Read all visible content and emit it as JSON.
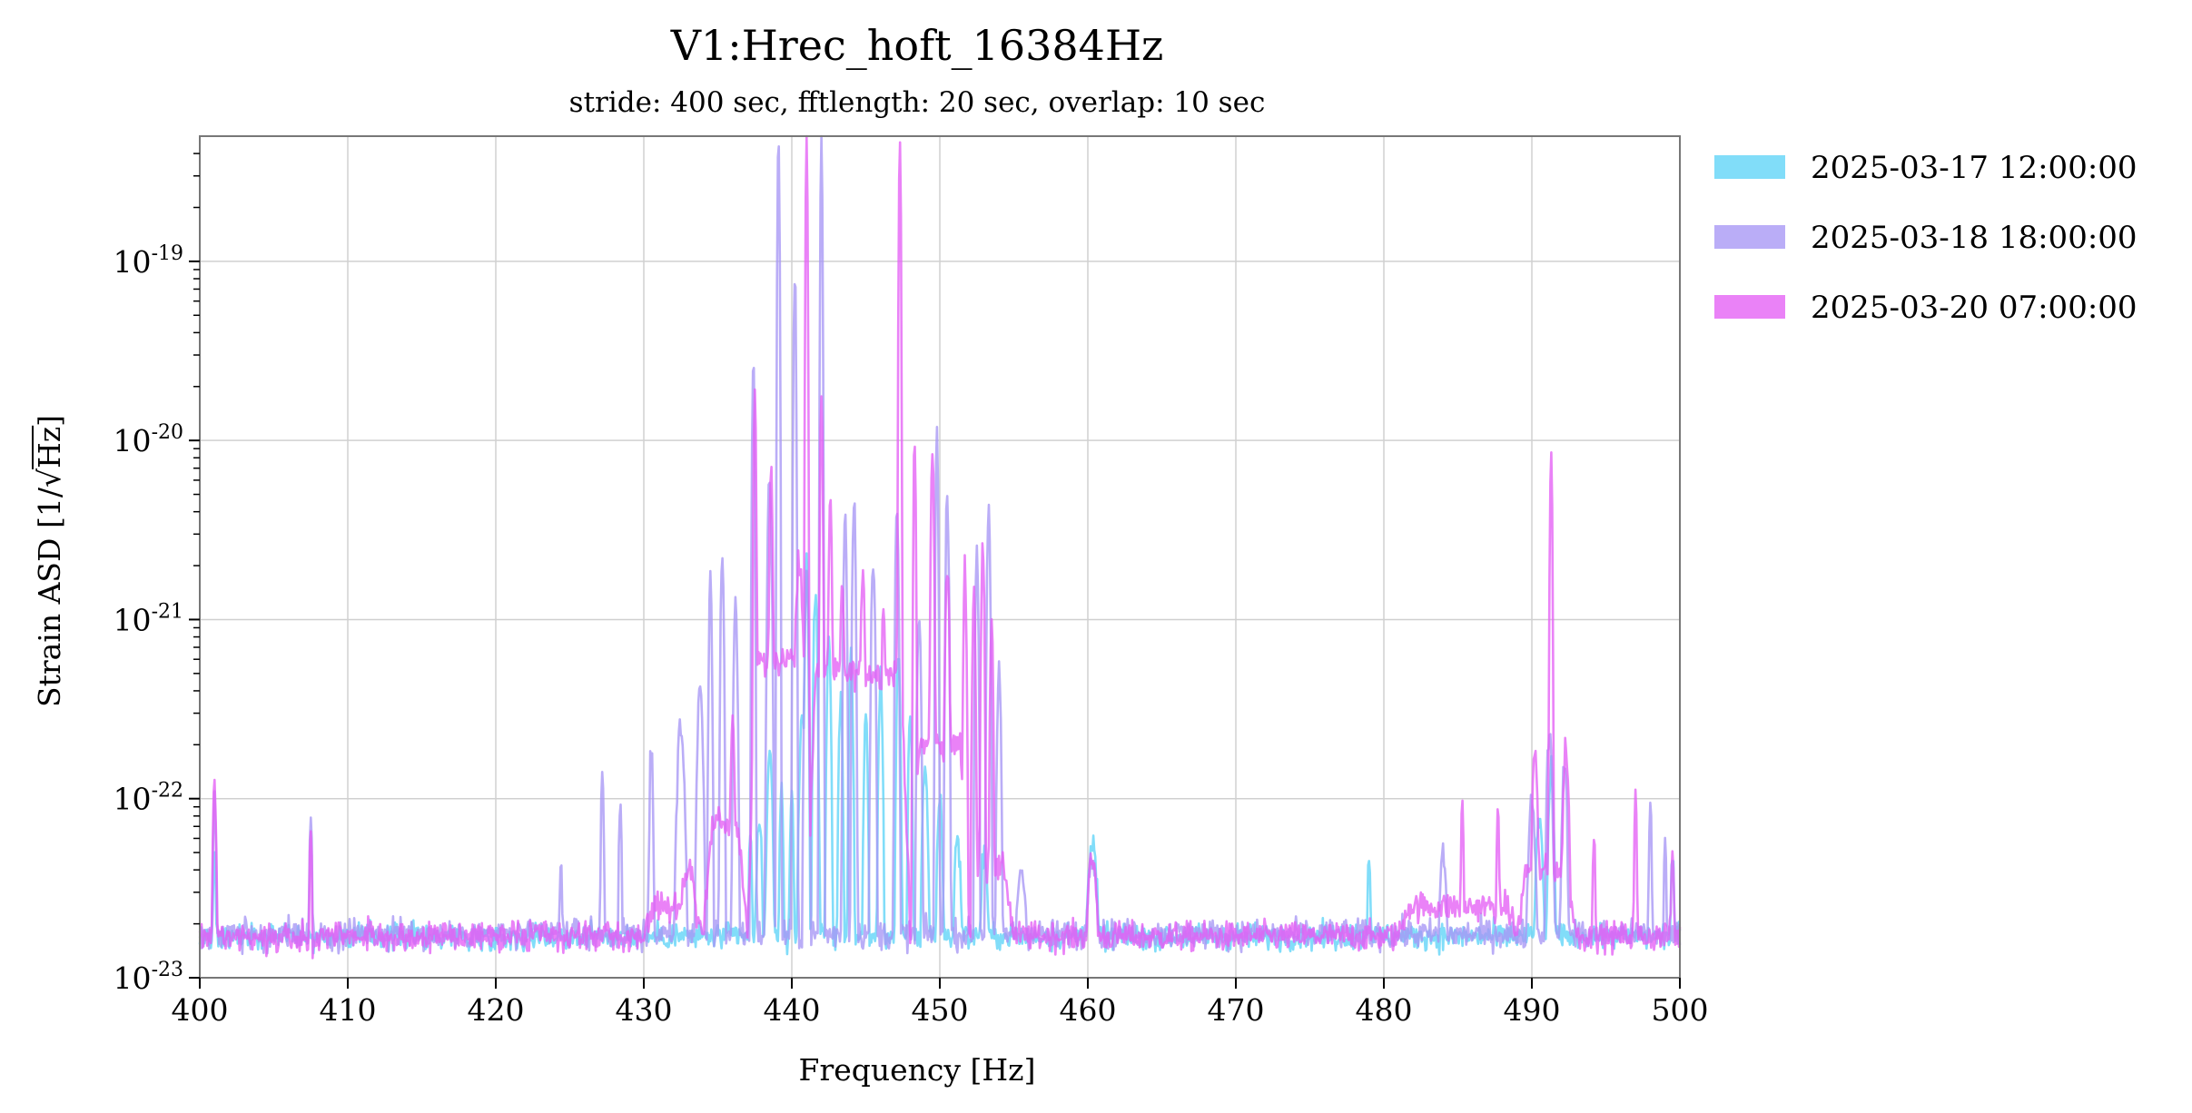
{
  "chart_data": {
    "type": "line",
    "title": "V1:Hrec_hoft_16384Hz",
    "subtitle": "stride: 400 sec, fftlength: 20 sec, overlap: 10 sec",
    "xlabel": "Frequency [Hz]",
    "ylabel": "Strain ASD [1/√Hz]",
    "ylabel_prefix": "Strain ASD [1/",
    "ylabel_radicand": "Hz",
    "ylabel_suffix": "]",
    "xlim": [
      400,
      500
    ],
    "ylim": [
      1e-23,
      5e-19
    ],
    "yscale": "log",
    "grid": true,
    "legend_position": "outside-right",
    "xticks": [
      400,
      410,
      420,
      430,
      440,
      450,
      460,
      470,
      480,
      490,
      500
    ],
    "xtick_labels": [
      "400",
      "410",
      "420",
      "430",
      "440",
      "450",
      "460",
      "470",
      "480",
      "490",
      "500"
    ],
    "yticks": [
      {
        "value": 1e-23,
        "base": "10",
        "exp": "-23"
      },
      {
        "value": 1e-22,
        "base": "10",
        "exp": "-22"
      },
      {
        "value": 1e-21,
        "base": "10",
        "exp": "-21"
      },
      {
        "value": 1e-20,
        "base": "10",
        "exp": "-20"
      },
      {
        "value": 1e-19,
        "base": "10",
        "exp": "-19"
      }
    ],
    "series": [
      {
        "name": "2025-03-17 12:00:00",
        "color": "#5ed3f7",
        "baseline": 1.7e-23,
        "noise_dex": 0.07,
        "features": [
          {
            "f": 401.0,
            "a": 5e-23,
            "w": 0.1
          },
          {
            "f": 437.2,
            "a": 6e-23,
            "w": 0.1
          },
          {
            "f": 437.8,
            "a": 8e-23,
            "w": 0.15
          },
          {
            "f": 438.5,
            "a": 1.8e-22,
            "w": 0.15
          },
          {
            "f": 439.3,
            "a": 1.2e-22,
            "w": 0.1
          },
          {
            "f": 440.0,
            "a": 1.1e-22,
            "w": 0.1
          },
          {
            "f": 440.7,
            "a": 3e-22,
            "w": 0.15
          },
          {
            "f": 441.0,
            "a": 2.5e-21,
            "w": 0.08
          },
          {
            "f": 441.6,
            "a": 1.5e-21,
            "w": 0.1
          },
          {
            "f": 442.5,
            "a": 8e-22,
            "w": 0.1
          },
          {
            "f": 443.3,
            "a": 4e-22,
            "w": 0.1
          },
          {
            "f": 444.0,
            "a": 6e-22,
            "w": 0.1
          },
          {
            "f": 445.0,
            "a": 3e-22,
            "w": 0.1
          },
          {
            "f": 446.0,
            "a": 5e-22,
            "w": 0.1
          },
          {
            "f": 447.2,
            "a": 6e-22,
            "w": 0.1
          },
          {
            "f": 448.0,
            "a": 3e-22,
            "w": 0.1
          },
          {
            "f": 449.0,
            "a": 1.5e-22,
            "w": 0.15
          },
          {
            "f": 450.0,
            "a": 1e-22,
            "w": 0.15
          },
          {
            "f": 451.2,
            "a": 6e-23,
            "w": 0.2
          },
          {
            "f": 453.0,
            "a": 5e-23,
            "w": 0.2
          },
          {
            "f": 460.3,
            "a": 5.5e-23,
            "w": 0.3
          },
          {
            "f": 479.0,
            "a": 5e-23,
            "w": 0.1
          },
          {
            "f": 490.5,
            "a": 8e-23,
            "w": 0.2
          },
          {
            "f": 491.3,
            "a": 1.5e-22,
            "w": 0.15
          },
          {
            "f": 499.5,
            "a": 5e-23,
            "w": 0.1
          }
        ]
      },
      {
        "name": "2025-03-18 18:00:00",
        "color": "#a796f5",
        "baseline": 1.75e-23,
        "noise_dex": 0.08,
        "features": [
          {
            "f": 401.0,
            "a": 1e-22,
            "w": 0.1
          },
          {
            "f": 407.5,
            "a": 8e-23,
            "w": 0.08
          },
          {
            "f": 424.4,
            "a": 5e-23,
            "w": 0.08
          },
          {
            "f": 427.2,
            "a": 1.5e-22,
            "w": 0.08
          },
          {
            "f": 428.4,
            "a": 1e-22,
            "w": 0.08
          },
          {
            "f": 430.5,
            "a": 1.8e-22,
            "w": 0.1
          },
          {
            "f": 432.5,
            "a": 2.5e-22,
            "w": 0.2
          },
          {
            "f": 433.8,
            "a": 4e-22,
            "w": 0.15
          },
          {
            "f": 434.5,
            "a": 1.6e-21,
            "w": 0.08
          },
          {
            "f": 435.3,
            "a": 2.5e-21,
            "w": 0.08
          },
          {
            "f": 436.2,
            "a": 1.2e-21,
            "w": 0.1
          },
          {
            "f": 437.4,
            "a": 3e-20,
            "w": 0.06
          },
          {
            "f": 438.5,
            "a": 6e-21,
            "w": 0.1
          },
          {
            "f": 439.1,
            "a": 5e-19,
            "w": 0.05
          },
          {
            "f": 440.2,
            "a": 8e-20,
            "w": 0.06
          },
          {
            "f": 441.0,
            "a": 1.8e-21,
            "w": 0.1
          },
          {
            "f": 442.0,
            "a": 5e-19,
            "w": 0.05
          },
          {
            "f": 443.6,
            "a": 4e-21,
            "w": 0.08
          },
          {
            "f": 444.2,
            "a": 5e-21,
            "w": 0.08
          },
          {
            "f": 445.5,
            "a": 2e-21,
            "w": 0.1
          },
          {
            "f": 447.1,
            "a": 4e-21,
            "w": 0.08
          },
          {
            "f": 448.6,
            "a": 1e-21,
            "w": 0.1
          },
          {
            "f": 449.8,
            "a": 1.2e-20,
            "w": 0.06
          },
          {
            "f": 450.5,
            "a": 5e-21,
            "w": 0.08
          },
          {
            "f": 452.5,
            "a": 2.5e-21,
            "w": 0.08
          },
          {
            "f": 453.3,
            "a": 4.5e-21,
            "w": 0.08
          },
          {
            "f": 454.0,
            "a": 5e-22,
            "w": 0.1
          },
          {
            "f": 455.5,
            "a": 4e-23,
            "w": 0.3
          },
          {
            "f": 460.3,
            "a": 5e-23,
            "w": 0.3
          },
          {
            "f": 484.0,
            "a": 5e-23,
            "w": 0.2
          },
          {
            "f": 490.0,
            "a": 1e-22,
            "w": 0.2
          },
          {
            "f": 491.2,
            "a": 2.5e-22,
            "w": 0.15
          },
          {
            "f": 492.2,
            "a": 1.5e-22,
            "w": 0.15
          },
          {
            "f": 498.0,
            "a": 1e-22,
            "w": 0.08
          },
          {
            "f": 499.0,
            "a": 6e-23,
            "w": 0.08
          }
        ]
      },
      {
        "name": "2025-03-20 07:00:00",
        "color": "#e45ff5",
        "baseline": 1.7e-23,
        "noise_dex": 0.08,
        "features": [
          {
            "f": 401.0,
            "a": 1.2e-22,
            "w": 0.1
          },
          {
            "f": 407.5,
            "a": 7.5e-23,
            "w": 0.06
          },
          {
            "f": 433.0,
            "a": 4e-23,
            "w": 0.5
          },
          {
            "f": 435.0,
            "a": 8e-23,
            "w": 0.3
          },
          {
            "f": 436.0,
            "a": 3e-22,
            "w": 0.1
          },
          {
            "f": 437.5,
            "a": 2e-20,
            "w": 0.06
          },
          {
            "f": 438.6,
            "a": 7e-21,
            "w": 0.08
          },
          {
            "f": 440.5,
            "a": 2e-21,
            "w": 0.2
          },
          {
            "f": 441.0,
            "a": 5e-19,
            "w": 0.05
          },
          {
            "f": 442.0,
            "a": 2e-20,
            "w": 0.06
          },
          {
            "f": 442.6,
            "a": 5e-21,
            "w": 0.08
          },
          {
            "f": 443.4,
            "a": 1.5e-21,
            "w": 0.1
          },
          {
            "f": 444.8,
            "a": 2e-21,
            "w": 0.1
          },
          {
            "f": 446.2,
            "a": 1.2e-21,
            "w": 0.1
          },
          {
            "f": 447.3,
            "a": 5e-19,
            "w": 0.05
          },
          {
            "f": 448.3,
            "a": 1e-20,
            "w": 0.06
          },
          {
            "f": 449.5,
            "a": 8e-21,
            "w": 0.08
          },
          {
            "f": 450.5,
            "a": 2e-21,
            "w": 0.1
          },
          {
            "f": 451.7,
            "a": 2e-21,
            "w": 0.08
          },
          {
            "f": 452.3,
            "a": 1.5e-21,
            "w": 0.08
          },
          {
            "f": 452.9,
            "a": 2.5e-21,
            "w": 0.08
          },
          {
            "f": 453.5,
            "a": 1e-21,
            "w": 0.08
          },
          {
            "f": 460.3,
            "a": 4.5e-23,
            "w": 0.3
          },
          {
            "f": 485.3,
            "a": 9e-23,
            "w": 0.08
          },
          {
            "f": 487.7,
            "a": 8e-23,
            "w": 0.08
          },
          {
            "f": 490.2,
            "a": 1.8e-22,
            "w": 0.15
          },
          {
            "f": 491.3,
            "a": 9e-21,
            "w": 0.06
          },
          {
            "f": 492.3,
            "a": 2e-22,
            "w": 0.15
          },
          {
            "f": 494.2,
            "a": 7e-23,
            "w": 0.08
          },
          {
            "f": 497.0,
            "a": 1e-22,
            "w": 0.08
          },
          {
            "f": 499.5,
            "a": 5e-23,
            "w": 0.1
          }
        ],
        "bands": [
          {
            "f0": 430,
            "f1": 434,
            "level": 2.5e-23
          },
          {
            "f0": 434,
            "f1": 437,
            "level": 7e-23
          },
          {
            "f0": 437,
            "f1": 441,
            "level": 6e-22
          },
          {
            "f0": 441,
            "f1": 448,
            "level": 5e-22
          },
          {
            "f0": 448,
            "f1": 452,
            "level": 2e-22
          },
          {
            "f0": 452,
            "f1": 455,
            "level": 4e-23
          },
          {
            "f0": 481,
            "f1": 489,
            "level": 2.5e-23
          },
          {
            "f0": 489,
            "f1": 493,
            "level": 4e-23
          }
        ]
      }
    ]
  }
}
